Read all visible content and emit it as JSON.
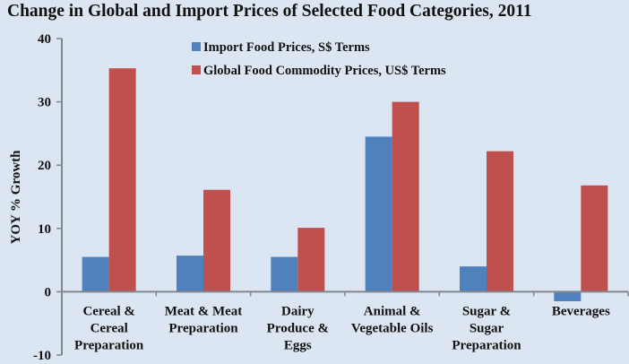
{
  "chart_data": {
    "type": "bar",
    "title": "Change in Global and Import Prices of Selected Food Categories, 2011",
    "xlabel": "",
    "ylabel": "YOY % Growth",
    "ylim": [
      -10,
      40
    ],
    "yticks": [
      40,
      30,
      20,
      10,
      0,
      -10
    ],
    "ytick_labels": [
      "40",
      "30",
      "20",
      "10",
      "0",
      "-10"
    ],
    "grid": false,
    "legend_position": "top-center",
    "categories": [
      [
        "Cereal &",
        "Cereal",
        "Preparation"
      ],
      [
        "Meat & Meat",
        "Preparation"
      ],
      [
        "Dairy",
        "Produce &",
        "Eggs"
      ],
      [
        "Animal &",
        "Vegetable Oils"
      ],
      [
        "Sugar &",
        "Sugar",
        "Preparation"
      ],
      [
        "Beverages"
      ]
    ],
    "series": [
      {
        "name": "Import Food Prices, S$ Terms",
        "color": "#4f81bd",
        "values": [
          5.5,
          5.7,
          5.5,
          24.5,
          4.0,
          -1.5
        ]
      },
      {
        "name": "Global Food Commodity Prices, US$ Terms",
        "color": "#c0504d",
        "values": [
          35.3,
          16.1,
          10.1,
          30.0,
          22.2,
          16.8
        ]
      }
    ]
  }
}
